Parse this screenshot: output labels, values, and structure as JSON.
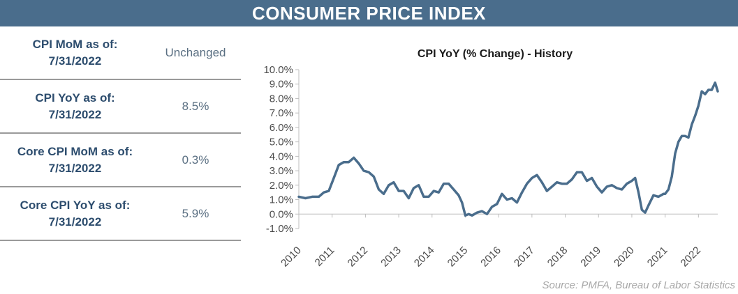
{
  "header": {
    "title": "CONSUMER PRICE INDEX"
  },
  "stats": [
    {
      "label": "CPI MoM as of:\n7/31/2022",
      "value": "Unchanged"
    },
    {
      "label": "CPI YoY as of:\n7/31/2022",
      "value": "8.5%"
    },
    {
      "label": "Core CPI MoM as of:\n7/31/2022",
      "value": "0.3%"
    },
    {
      "label": "Core CPI YoY as of:\n7/31/2022",
      "value": "5.9%"
    }
  ],
  "source": "Source:  PMFA,  Bureau of Labor Statistics",
  "colors": {
    "banner": "#4a6d8c",
    "line": "#4a6d8c",
    "label": "#2d4d6e"
  },
  "chart_data": {
    "type": "line",
    "title": "CPI YoY (% Change) - History",
    "xlabel": "",
    "ylabel": "",
    "xlim": [
      2010,
      2022.58
    ],
    "ylim": [
      -1.0,
      10.0
    ],
    "y_ticks": [
      -1.0,
      0.0,
      1.0,
      2.0,
      3.0,
      4.0,
      5.0,
      6.0,
      7.0,
      8.0,
      9.0,
      10.0
    ],
    "y_tick_labels": [
      "-1.0%",
      "0.0%",
      "1.0%",
      "2.0%",
      "3.0%",
      "4.0%",
      "5.0%",
      "6.0%",
      "7.0%",
      "8.0%",
      "9.0%",
      "10.0%"
    ],
    "x_ticks": [
      2010,
      2011,
      2012,
      2013,
      2014,
      2015,
      2016,
      2017,
      2018,
      2019,
      2020,
      2021,
      2022
    ],
    "x_tick_labels": [
      "2010",
      "2011",
      "2012",
      "2013",
      "2014",
      "2015",
      "2016",
      "2017",
      "2018",
      "2019",
      "2020",
      "2021",
      "2022"
    ],
    "grid": false,
    "series": [
      {
        "name": "",
        "x": [
          2010.0,
          2010.2,
          2010.4,
          2010.6,
          2010.75,
          2010.9,
          2011.05,
          2011.2,
          2011.35,
          2011.5,
          2011.65,
          2011.8,
          2011.95,
          2012.1,
          2012.25,
          2012.4,
          2012.55,
          2012.7,
          2012.85,
          2013.0,
          2013.15,
          2013.3,
          2013.45,
          2013.6,
          2013.75,
          2013.9,
          2014.05,
          2014.2,
          2014.35,
          2014.5,
          2014.65,
          2014.8,
          2014.9,
          2015.0,
          2015.1,
          2015.2,
          2015.35,
          2015.5,
          2015.65,
          2015.8,
          2015.95,
          2016.1,
          2016.25,
          2016.4,
          2016.55,
          2016.7,
          2016.85,
          2017.0,
          2017.15,
          2017.3,
          2017.45,
          2017.6,
          2017.75,
          2017.9,
          2018.05,
          2018.2,
          2018.35,
          2018.5,
          2018.65,
          2018.8,
          2018.95,
          2019.1,
          2019.25,
          2019.4,
          2019.55,
          2019.7,
          2019.85,
          2020.0,
          2020.1,
          2020.2,
          2020.3,
          2020.4,
          2020.5,
          2020.65,
          2020.8,
          2020.95,
          2021.0,
          2021.1,
          2021.2,
          2021.3,
          2021.4,
          2021.5,
          2021.6,
          2021.7,
          2021.8,
          2021.9,
          2022.0,
          2022.1,
          2022.2,
          2022.3,
          2022.4,
          2022.5,
          2022.58
        ],
        "values": [
          1.2,
          1.1,
          1.2,
          1.2,
          1.5,
          1.6,
          2.5,
          3.4,
          3.6,
          3.6,
          3.9,
          3.5,
          3.0,
          2.9,
          2.6,
          1.7,
          1.4,
          2.0,
          2.2,
          1.6,
          1.6,
          1.1,
          1.8,
          2.0,
          1.2,
          1.2,
          1.6,
          1.5,
          2.1,
          2.1,
          1.7,
          1.3,
          0.8,
          -0.1,
          0.0,
          -0.1,
          0.1,
          0.2,
          0.0,
          0.5,
          0.7,
          1.4,
          1.0,
          1.1,
          0.8,
          1.5,
          2.1,
          2.5,
          2.7,
          2.2,
          1.6,
          1.9,
          2.2,
          2.1,
          2.1,
          2.4,
          2.9,
          2.9,
          2.3,
          2.5,
          1.9,
          1.5,
          1.9,
          2.0,
          1.8,
          1.7,
          2.1,
          2.3,
          2.5,
          1.5,
          0.3,
          0.1,
          0.6,
          1.3,
          1.2,
          1.4,
          1.4,
          1.7,
          2.6,
          4.2,
          5.0,
          5.4,
          5.4,
          5.3,
          6.2,
          6.8,
          7.5,
          8.5,
          8.3,
          8.6,
          8.6,
          9.1,
          8.5
        ]
      }
    ]
  }
}
